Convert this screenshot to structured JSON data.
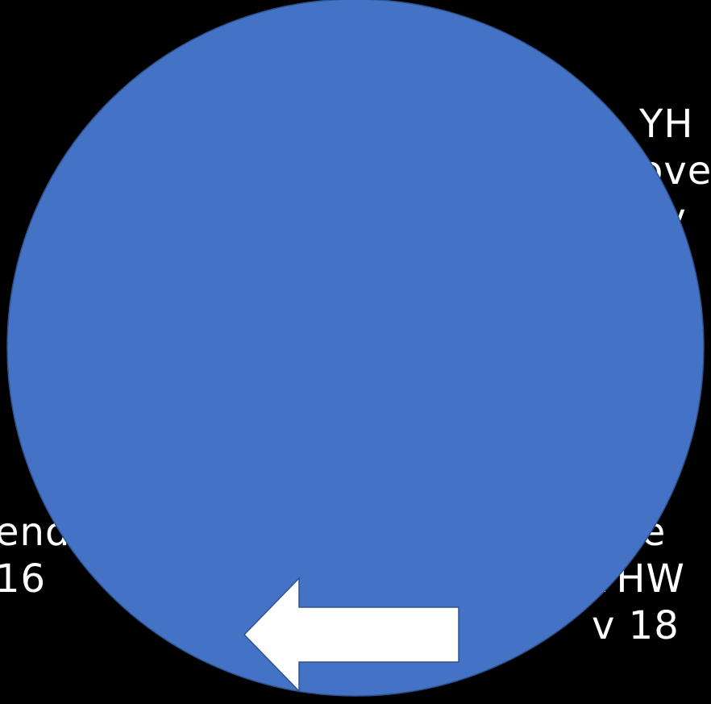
{
  "colors": {
    "background": "#000000",
    "circle_fill": "#4472C4",
    "circle_stroke": "#2F528F",
    "arrow_fill": "#FFFFFF",
    "arrow_stroke": "#2F528F",
    "text": "#FFFFFF"
  },
  "right_top_text": {
    "line1": "YH",
    "line2": "ove",
    "line3": "vv"
  },
  "right_bottom_text": {
    "line1": "The",
    "line2": "YHW",
    "line3": "v 18"
  },
  "left_bottom_text": {
    "line1": "ends a",
    "line2": "16"
  },
  "arrow": {
    "icon": "left-arrow-icon",
    "direction": "left"
  }
}
